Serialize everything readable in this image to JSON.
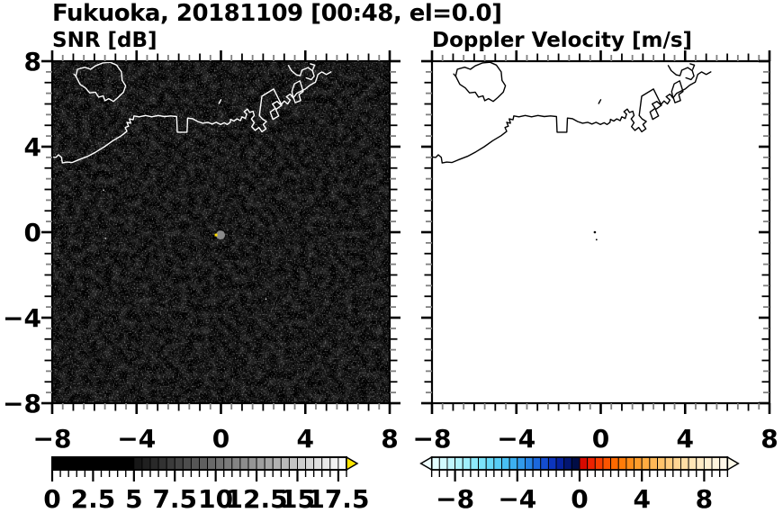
{
  "title": "Fukuoka, 20181109 [00:48, el=0.0]",
  "panels": [
    {
      "subtitle": "SNR [dB]"
    },
    {
      "subtitle": "Doppler Velocity [m/s]"
    }
  ],
  "chart_data": [
    {
      "type": "heatmap",
      "title": "SNR [dB]",
      "xlim": [
        -8,
        8
      ],
      "ylim": [
        -8,
        8
      ],
      "x_tick_values": [
        -8,
        -4,
        0,
        4,
        8
      ],
      "x_tick_labels": [
        "−8",
        "−4",
        "0",
        "4",
        "8"
      ],
      "y_tick_values": [
        8,
        4,
        0,
        -4,
        -8
      ],
      "y_tick_labels": [
        "8",
        "4",
        "0",
        "−4",
        "−8"
      ],
      "minor_tick_step": 0.5,
      "background_color": "#000000",
      "coast_color": "#ffffff",
      "field_description": "uniform faint noise speckle over black background, no precipitation echoes",
      "radar_origin_dot": {
        "x": -0.02,
        "y": -0.13,
        "radius_px": 5,
        "color": "#8a8a8a",
        "speck_color": "#ffdd00"
      },
      "bright_specks": [
        {
          "x": -5.6,
          "y": 2.0
        },
        {
          "x": -5.5,
          "y": -0.25
        },
        {
          "x": 2.1,
          "y": -3.1
        }
      ],
      "colorbar": {
        "units": "dB",
        "min": 0,
        "max": 18,
        "cell_step": 0.5,
        "tick_values": [
          0,
          2.5,
          5,
          7.5,
          10,
          12.5,
          15,
          17.5
        ],
        "tick_labels": [
          "0",
          "2.5",
          "5",
          "7.5",
          "10",
          "12.5",
          "15",
          "17.5"
        ],
        "style": "grayscale-black-to-white",
        "black_below": 5,
        "overflow_arrow_color": "#ffe600"
      }
    },
    {
      "type": "heatmap",
      "title": "Doppler Velocity [m/s]",
      "xlim": [
        -8,
        8
      ],
      "ylim": [
        -8,
        8
      ],
      "x_tick_values": [
        -8,
        -4,
        0,
        4,
        8
      ],
      "x_tick_labels": [
        "−8",
        "−4",
        "0",
        "4",
        "8"
      ],
      "y_tick_values": [
        8,
        4,
        0,
        -4,
        -8
      ],
      "y_tick_labels": [],
      "minor_tick_step": 0.5,
      "background_color": "#ffffff",
      "coast_color": "#000000",
      "field_description": "empty white field, only tiny specks near the radar origin",
      "specks": [
        {
          "x": -0.28,
          "y": 0.0,
          "r": 1.3
        },
        {
          "x": -0.2,
          "y": -0.35,
          "r": 0.9
        }
      ],
      "colorbar": {
        "units": "m/s",
        "min": -9.5,
        "max": 9.5,
        "cell_step": 0.5,
        "tick_values": [
          -8,
          -4,
          0,
          4,
          8
        ],
        "tick_labels": [
          "−8",
          "−4",
          "0",
          "4",
          "8"
        ],
        "style": "diverging-cyan-blue-to-red-yellow",
        "underflow_arrow_color": "#EFFFFF",
        "overflow_arrow_color": "#FFFBEA",
        "color_stops": [
          [
            -9.5,
            "#EAFEFF"
          ],
          [
            -8.5,
            "#C8F9FE"
          ],
          [
            -7.5,
            "#A8F2FC"
          ],
          [
            -6.5,
            "#84E7FA"
          ],
          [
            -5.5,
            "#5ED5F7"
          ],
          [
            -4.5,
            "#41B9F2"
          ],
          [
            -3.5,
            "#2B90E9"
          ],
          [
            -2.75,
            "#1C68DC"
          ],
          [
            -2.0,
            "#1040CC"
          ],
          [
            -1.5,
            "#0829AE"
          ],
          [
            -1.0,
            "#041B8C"
          ],
          [
            -0.5,
            "#021058"
          ],
          [
            -0.05,
            "#010A38"
          ],
          [
            0.05,
            "#CE0000"
          ],
          [
            0.75,
            "#EE2200"
          ],
          [
            1.5,
            "#FB4A00"
          ],
          [
            2.5,
            "#FF7300"
          ],
          [
            3.5,
            "#FF9622"
          ],
          [
            4.5,
            "#FFB34B"
          ],
          [
            5.5,
            "#FFC876"
          ],
          [
            6.5,
            "#FFDA9C"
          ],
          [
            7.5,
            "#FFE8BE"
          ],
          [
            8.5,
            "#FFF2D8"
          ],
          [
            9.5,
            "#FFF9EC"
          ]
        ]
      }
    }
  ],
  "map_outline": {
    "paths": {
      "island": [
        [
          -6.88,
          7.3
        ],
        [
          -6.8,
          7.62
        ],
        [
          -6.45,
          7.72
        ],
        [
          -6.18,
          7.62
        ],
        [
          -5.95,
          7.78
        ],
        [
          -5.6,
          7.92
        ],
        [
          -5.25,
          7.95
        ],
        [
          -4.95,
          7.82
        ],
        [
          -4.72,
          7.5
        ],
        [
          -4.68,
          7.1
        ],
        [
          -4.52,
          6.85
        ],
        [
          -4.62,
          6.55
        ],
        [
          -4.88,
          6.3
        ],
        [
          -5.1,
          6.12
        ],
        [
          -5.32,
          6.25
        ],
        [
          -5.5,
          6.15
        ],
        [
          -5.58,
          6.38
        ],
        [
          -5.8,
          6.32
        ],
        [
          -5.95,
          6.55
        ],
        [
          -6.22,
          6.52
        ],
        [
          -6.42,
          6.75
        ],
        [
          -6.68,
          6.92
        ],
        [
          -6.88,
          7.3
        ]
      ],
      "west_coast": [
        [
          -8.0,
          3.52
        ],
        [
          -7.82,
          3.5
        ],
        [
          -7.7,
          3.62
        ],
        [
          -7.56,
          3.5
        ],
        [
          -7.52,
          3.24
        ],
        [
          -7.3,
          3.28
        ],
        [
          -7.06,
          3.26
        ],
        [
          -6.72,
          3.4
        ],
        [
          -6.32,
          3.55
        ],
        [
          -5.92,
          3.76
        ],
        [
          -5.52,
          4.0
        ],
        [
          -5.12,
          4.28
        ],
        [
          -4.72,
          4.52
        ],
        [
          -4.46,
          4.72
        ],
        [
          -4.54,
          4.9
        ],
        [
          -4.38,
          4.96
        ],
        [
          -4.46,
          5.14
        ],
        [
          -4.28,
          5.1
        ],
        [
          -4.34,
          5.3
        ],
        [
          -4.16,
          5.26
        ],
        [
          -4.12,
          5.44
        ],
        [
          -3.88,
          5.4
        ],
        [
          -3.58,
          5.46
        ],
        [
          -3.28,
          5.4
        ],
        [
          -2.98,
          5.46
        ],
        [
          -2.68,
          5.41
        ],
        [
          -2.38,
          5.44
        ],
        [
          -2.1,
          5.41
        ],
        [
          -2.07,
          4.68
        ],
        [
          -1.61,
          4.68
        ],
        [
          -1.58,
          5.34
        ],
        [
          -1.34,
          5.31
        ],
        [
          -1.1,
          5.18
        ],
        [
          -0.86,
          5.1
        ],
        [
          -0.62,
          5.14
        ],
        [
          -0.42,
          5.06
        ],
        [
          -0.22,
          5.14
        ],
        [
          -0.02,
          5.04
        ],
        [
          0.16,
          5.12
        ],
        [
          0.3,
          5.04
        ],
        [
          0.44,
          5.14
        ],
        [
          0.46,
          5.28
        ],
        [
          0.62,
          5.2
        ],
        [
          0.76,
          5.3
        ],
        [
          0.92,
          5.22
        ],
        [
          1.0,
          5.4
        ],
        [
          1.16,
          5.32
        ],
        [
          1.22,
          5.52
        ]
      ],
      "harbor": [
        [
          1.22,
          5.52
        ],
        [
          1.1,
          5.64
        ],
        [
          1.26,
          5.76
        ],
        [
          1.36,
          5.6
        ],
        [
          1.52,
          5.66
        ],
        [
          1.58,
          5.46
        ],
        [
          1.44,
          5.3
        ],
        [
          1.58,
          5.12
        ],
        [
          1.46,
          4.94
        ],
        [
          1.62,
          4.76
        ],
        [
          1.8,
          4.9
        ],
        [
          1.94,
          4.7
        ],
        [
          2.14,
          4.84
        ],
        [
          2.0,
          5.04
        ],
        [
          2.16,
          5.18
        ],
        [
          1.96,
          5.3
        ],
        [
          1.82,
          5.46
        ],
        [
          1.94,
          6.36
        ],
        [
          2.5,
          6.7
        ],
        [
          2.88,
          5.94
        ],
        [
          2.6,
          5.74
        ],
        [
          2.74,
          5.44
        ],
        [
          2.46,
          5.28
        ],
        [
          2.34,
          5.62
        ],
        [
          2.58,
          5.8
        ],
        [
          2.44,
          6.0
        ],
        [
          2.66,
          6.12
        ],
        [
          2.84,
          5.96
        ],
        [
          3.0,
          6.14
        ],
        [
          3.16,
          6.0
        ],
        [
          3.28,
          6.18
        ],
        [
          3.1,
          6.34
        ],
        [
          3.28,
          6.46
        ],
        [
          3.42,
          6.28
        ],
        [
          3.36,
          6.58
        ],
        [
          3.48,
          6.94
        ],
        [
          3.74,
          7.08
        ],
        [
          3.9,
          6.58
        ],
        [
          3.7,
          6.44
        ],
        [
          3.78,
          6.16
        ],
        [
          3.52,
          6.06
        ],
        [
          3.44,
          6.3
        ],
        [
          3.6,
          6.5
        ],
        [
          3.8,
          6.6
        ],
        [
          4.0,
          6.7
        ],
        [
          4.22,
          6.88
        ],
        [
          4.48,
          7.02
        ],
        [
          4.6,
          7.38
        ],
        [
          4.78,
          7.5
        ],
        [
          5.0,
          7.38
        ],
        [
          5.22,
          7.5
        ]
      ],
      "swoosh": [
        [
          3.2,
          7.8
        ],
        [
          3.34,
          7.56
        ],
        [
          3.58,
          7.36
        ],
        [
          3.76,
          7.32
        ],
        [
          3.84,
          7.58
        ],
        [
          4.12,
          7.7
        ],
        [
          4.34,
          7.56
        ],
        [
          4.42,
          7.3
        ],
        [
          4.28,
          7.14
        ],
        [
          4.04,
          7.22
        ]
      ],
      "mark7": [
        [
          4.24,
          7.88
        ],
        [
          4.44,
          7.82
        ],
        [
          4.36,
          7.62
        ]
      ],
      "mark_mid": [
        [
          -0.1,
          6.02
        ],
        [
          0.0,
          6.2
        ]
      ],
      "mark_island_w": [
        [
          -6.97,
          7.4
        ],
        [
          -6.86,
          7.28
        ]
      ]
    }
  }
}
